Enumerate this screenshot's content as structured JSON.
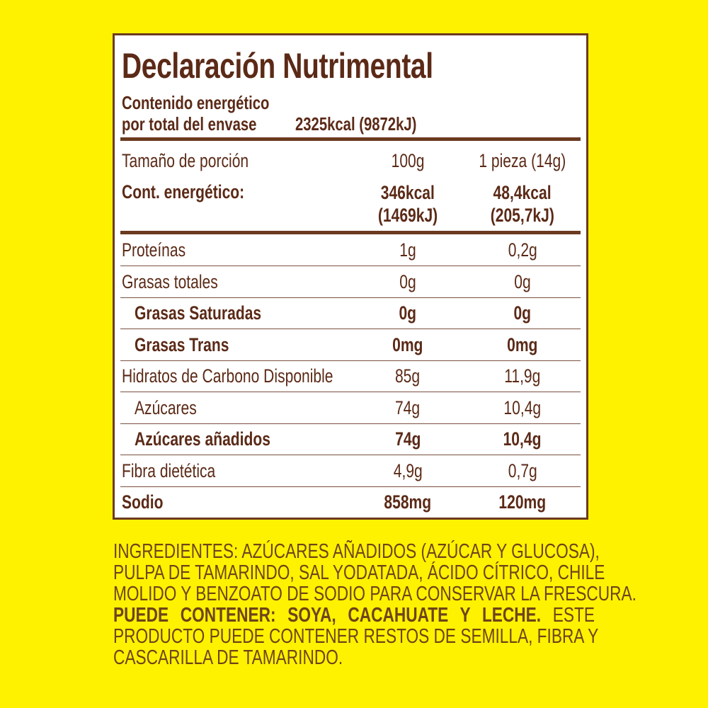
{
  "colors": {
    "background": "#fff200",
    "text": "#5b2a17",
    "ingredients_text": "#6e4418",
    "border": "#6b3a1f"
  },
  "title": "Declaración Nutrimental",
  "energy_total": {
    "label_line1": "Contenido energético",
    "label_line2": "por total del envase",
    "value": "2325kcal (9872kJ)"
  },
  "serving": {
    "label": "Tamaño de porción",
    "col1": "100g",
    "col2": "1 pieza (14g)"
  },
  "energy": {
    "label": "Cont. energético:",
    "col1_kcal": "346kcal",
    "col1_kj": "(1469kJ)",
    "col2_kcal": "48,4kcal",
    "col2_kj": "(205,7kJ)"
  },
  "rows": [
    {
      "label": "Proteínas",
      "col1": "1g",
      "col2": "0,2g",
      "bold": false,
      "indent": false
    },
    {
      "label": "Grasas totales",
      "col1": "0g",
      "col2": "0g",
      "bold": false,
      "indent": false
    },
    {
      "label": "Grasas Saturadas",
      "col1": "0g",
      "col2": "0g",
      "bold": true,
      "indent": true
    },
    {
      "label": "Grasas Trans",
      "col1": "0mg",
      "col2": "0mg",
      "bold": true,
      "indent": true
    },
    {
      "label": "Hidratos de Carbono Disponible",
      "col1": "85g",
      "col2": "11,9g",
      "bold": false,
      "indent": false
    },
    {
      "label": "Azúcares",
      "col1": "74g",
      "col2": "10,4g",
      "bold": false,
      "indent": true
    },
    {
      "label": "Azúcares añadidos",
      "col1": "74g",
      "col2": "10,4g",
      "bold": true,
      "indent": true
    },
    {
      "label": "Fibra dietética",
      "col1": "4,9g",
      "col2": "0,7g",
      "bold": false,
      "indent": false
    },
    {
      "label": "Sodio",
      "col1": "858mg",
      "col2": "120mg",
      "bold": true,
      "indent": false
    }
  ],
  "ingredients": {
    "line1": "INGREDIENTES: AZÚCARES AÑADIDOS (AZÚCAR Y GLUCOSA),",
    "line2": "PULPA DE TAMARINDO, SAL YODATADA, ÁCIDO CÍTRICO, CHILE",
    "line3": "MOLIDO Y BENZOATO DE SODIO PARA CONSERVAR LA FRESCURA.",
    "line4_bold": "PUEDE CONTENER: SOYA, CACAHUATE Y LECHE.",
    "line4_rest": "ESTE",
    "line5": "PRODUCTO PUEDE CONTENER RESTOS DE SEMILLA, FIBRA Y",
    "line6": "CASCARILLA DE TAMARINDO."
  }
}
